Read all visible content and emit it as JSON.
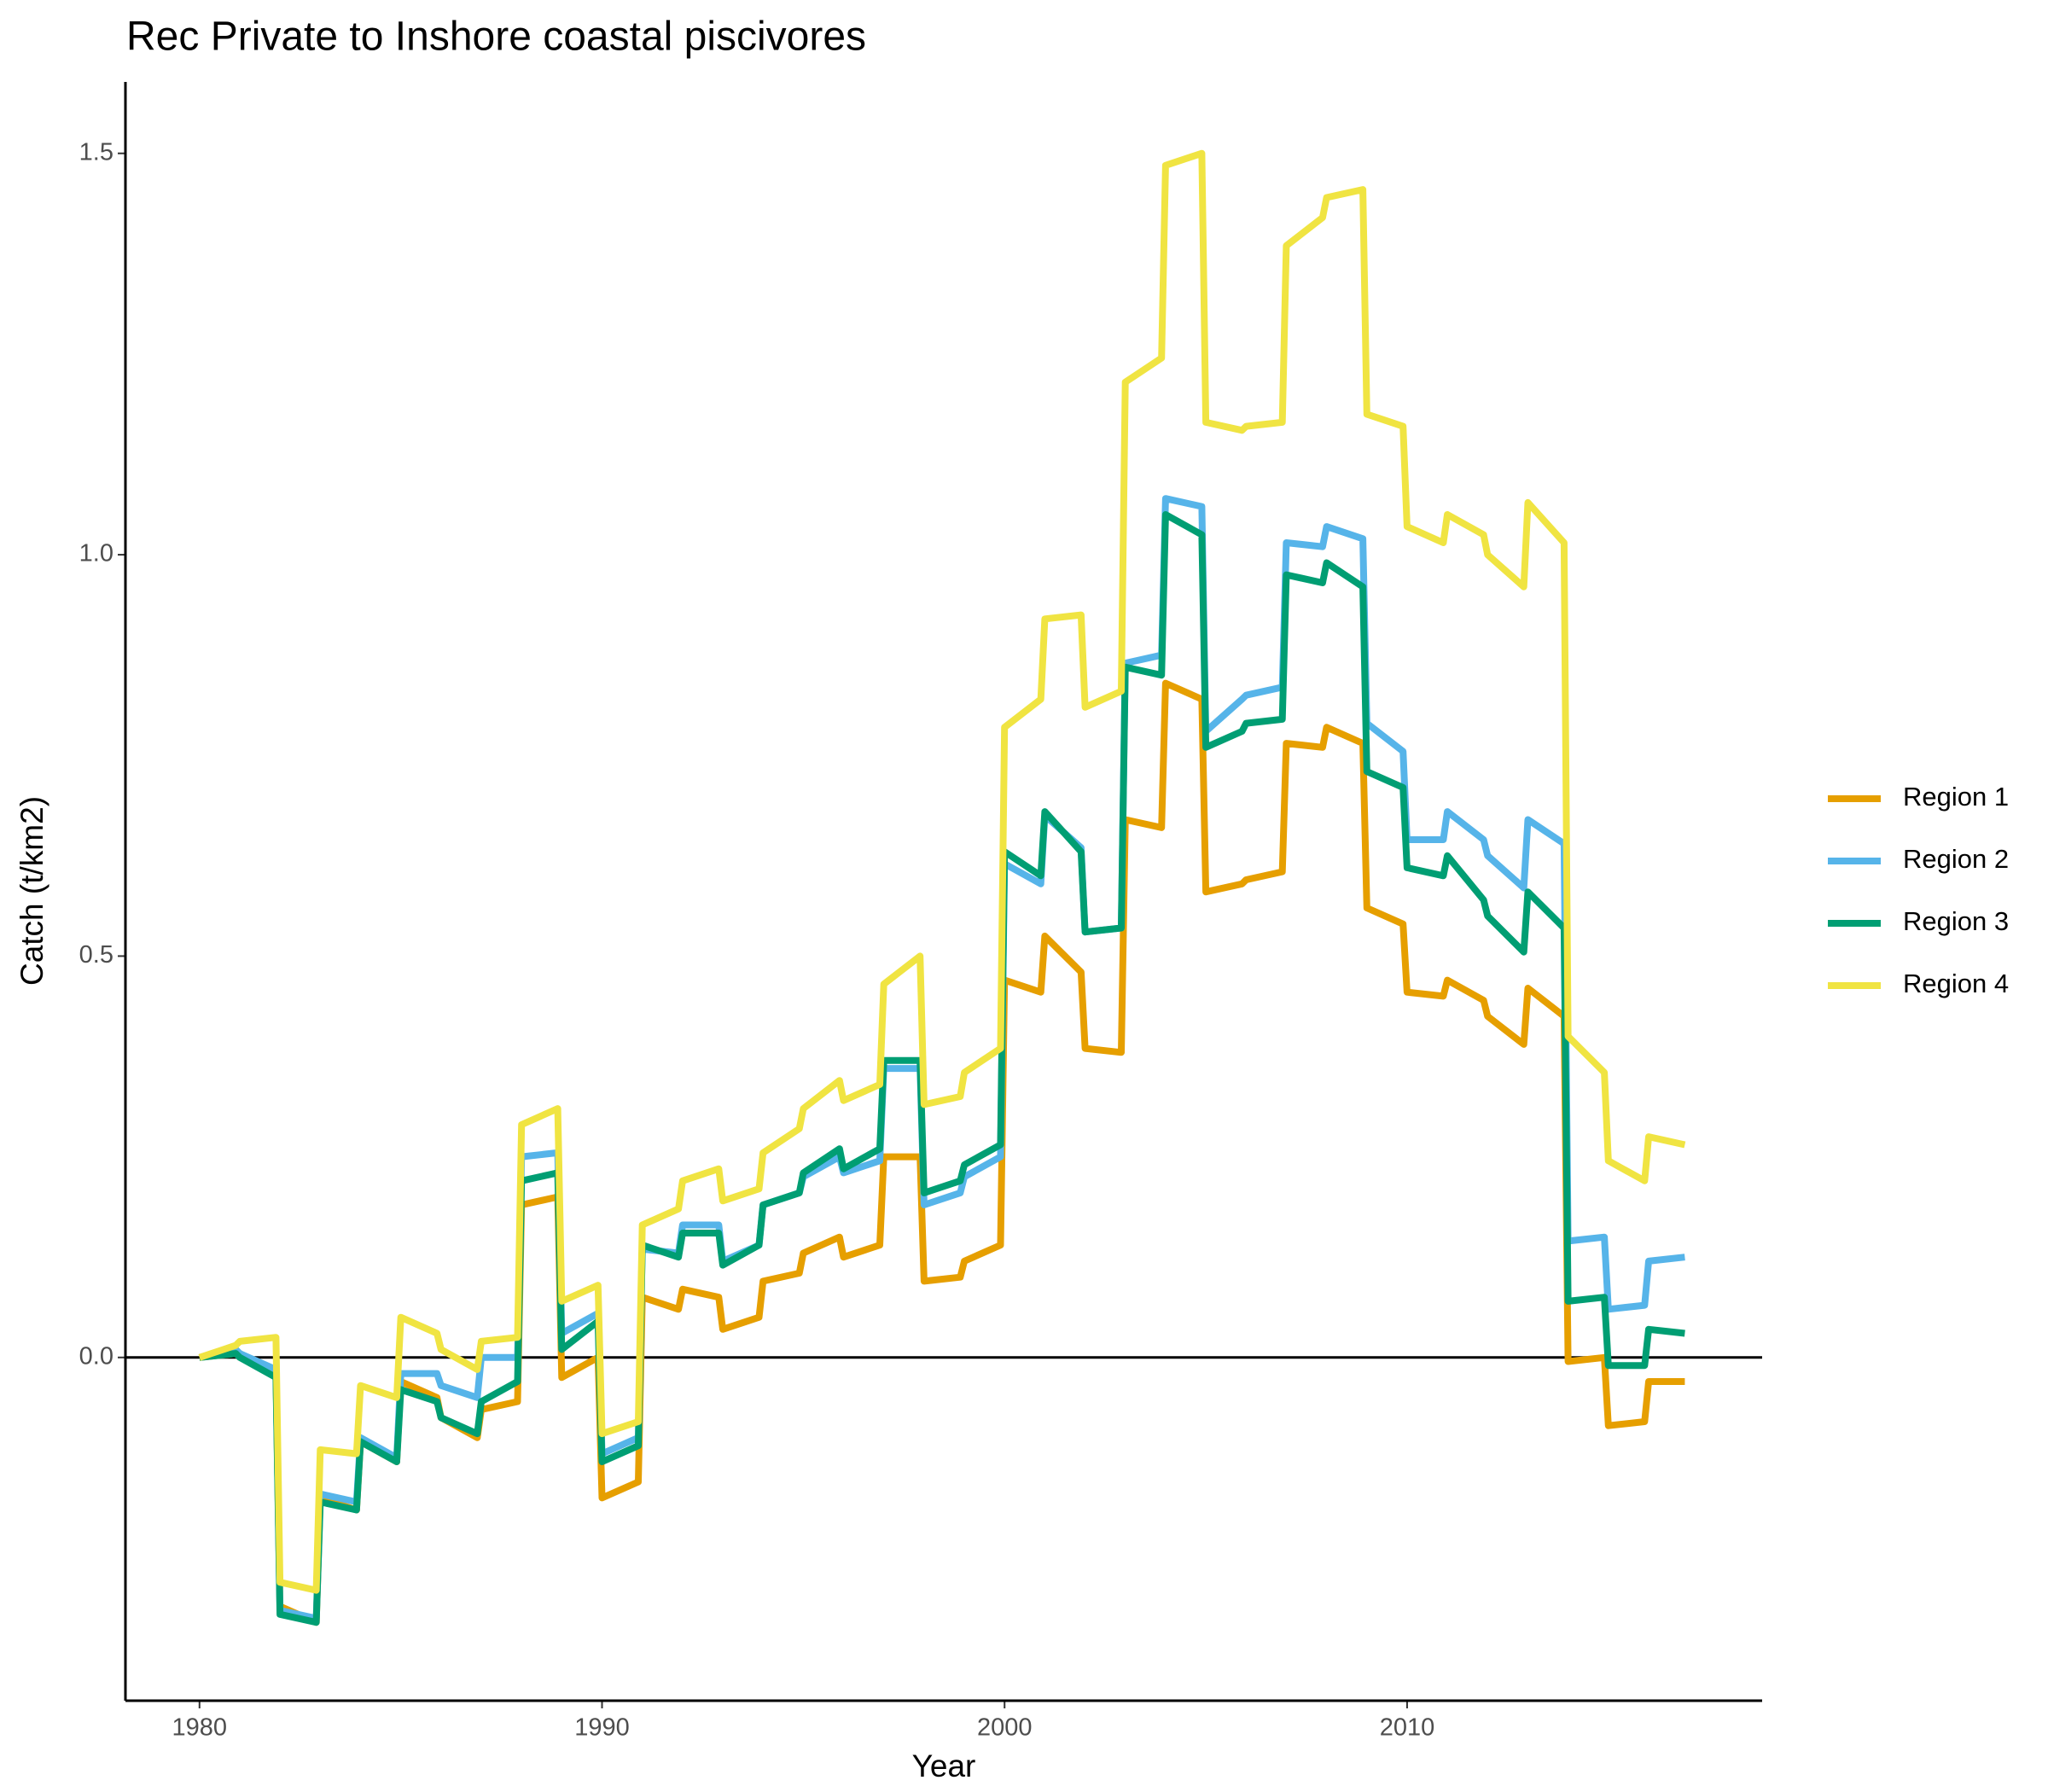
{
  "chart_data": {
    "type": "line",
    "title": "Rec Private to Inshore coastal piscivores",
    "x_label": "Year",
    "y_label": "Catch (t/km2)",
    "x": [
      1980,
      1980.9,
      1981,
      1981.9,
      1982,
      1982.9,
      1983,
      1983.9,
      1984,
      1984.9,
      1985,
      1985.9,
      1986,
      1986.9,
      1987,
      1987.9,
      1988,
      1988.9,
      1989,
      1989.9,
      1990,
      1990.9,
      1991,
      1991.9,
      1992,
      1992.9,
      1993,
      1993.9,
      1994,
      1994.9,
      1995,
      1995.9,
      1996,
      1996.9,
      1997,
      1997.9,
      1998,
      1998.9,
      1999,
      1999.9,
      2000,
      2000.9,
      2001,
      2001.9,
      2002,
      2002.9,
      2003,
      2003.9,
      2004,
      2004.9,
      2005,
      2005.9,
      2006,
      2006.9,
      2007,
      2007.9,
      2008,
      2008.9,
      2009,
      2009.9,
      2010,
      2010.9,
      2011,
      2011.9,
      2012,
      2012.9,
      2013,
      2013.9,
      2014,
      2014.9,
      2015,
      2015.9,
      2016,
      2016.9
    ],
    "series": [
      {
        "name": "Region 1",
        "color": "#e69f00",
        "values": [
          0,
          0.005,
          0.005,
          -0.02,
          -0.31,
          -0.33,
          -0.175,
          -0.19,
          -0.105,
          -0.13,
          -0.03,
          -0.05,
          -0.075,
          -0.1,
          -0.065,
          -0.055,
          0.19,
          0.2,
          -0.025,
          0.0,
          -0.175,
          -0.155,
          0.075,
          0.06,
          0.085,
          0.075,
          0.035,
          0.05,
          0.095,
          0.105,
          0.13,
          0.15,
          0.125,
          0.14,
          0.25,
          0.25,
          0.095,
          0.1,
          0.12,
          0.14,
          0.47,
          0.455,
          0.525,
          0.48,
          0.385,
          0.38,
          0.67,
          0.66,
          0.84,
          0.82,
          0.58,
          0.59,
          0.595,
          0.605,
          0.765,
          0.76,
          0.785,
          0.765,
          0.56,
          0.54,
          0.455,
          0.45,
          0.47,
          0.445,
          0.425,
          0.39,
          0.46,
          0.425,
          -0.005,
          0.0,
          -0.085,
          -0.08,
          -0.03,
          -0.03
        ]
      },
      {
        "name": "Region 2",
        "color": "#56b4e9",
        "values": [
          0,
          0.01,
          0.005,
          -0.015,
          -0.315,
          -0.325,
          -0.17,
          -0.18,
          -0.1,
          -0.125,
          -0.02,
          -0.02,
          -0.035,
          -0.05,
          0.0,
          0.0,
          0.25,
          0.255,
          0.03,
          0.055,
          -0.12,
          -0.1,
          0.135,
          0.13,
          0.165,
          0.165,
          0.12,
          0.14,
          0.19,
          0.205,
          0.225,
          0.25,
          0.23,
          0.245,
          0.36,
          0.36,
          0.19,
          0.205,
          0.225,
          0.25,
          0.615,
          0.59,
          0.675,
          0.635,
          0.53,
          0.535,
          0.865,
          0.875,
          1.07,
          1.06,
          0.78,
          0.82,
          0.825,
          0.835,
          1.015,
          1.01,
          1.035,
          1.02,
          0.79,
          0.755,
          0.645,
          0.645,
          0.68,
          0.645,
          0.625,
          0.585,
          0.67,
          0.64,
          0.145,
          0.15,
          0.06,
          0.065,
          0.12,
          0.125
        ]
      },
      {
        "name": "Region 3",
        "color": "#009e73",
        "values": [
          0,
          0.005,
          0.0,
          -0.025,
          -0.32,
          -0.33,
          -0.18,
          -0.19,
          -0.105,
          -0.13,
          -0.04,
          -0.055,
          -0.075,
          -0.095,
          -0.055,
          -0.03,
          0.22,
          0.23,
          0.01,
          0.045,
          -0.13,
          -0.11,
          0.14,
          0.125,
          0.155,
          0.155,
          0.115,
          0.14,
          0.19,
          0.205,
          0.23,
          0.26,
          0.235,
          0.26,
          0.37,
          0.37,
          0.205,
          0.22,
          0.24,
          0.265,
          0.63,
          0.6,
          0.68,
          0.63,
          0.53,
          0.535,
          0.86,
          0.85,
          1.05,
          1.025,
          0.76,
          0.78,
          0.79,
          0.795,
          0.975,
          0.965,
          0.99,
          0.96,
          0.73,
          0.71,
          0.61,
          0.6,
          0.625,
          0.57,
          0.55,
          0.505,
          0.58,
          0.535,
          0.07,
          0.075,
          -0.01,
          -0.01,
          0.035,
          0.03
        ]
      },
      {
        "name": "Region 4",
        "color": "#f0e442",
        "values": [
          0,
          0.015,
          0.02,
          0.025,
          -0.28,
          -0.29,
          -0.115,
          -0.12,
          -0.035,
          -0.05,
          0.05,
          0.03,
          0.01,
          -0.015,
          0.02,
          0.025,
          0.29,
          0.31,
          0.07,
          0.09,
          -0.095,
          -0.08,
          0.165,
          0.185,
          0.22,
          0.235,
          0.195,
          0.21,
          0.255,
          0.285,
          0.31,
          0.345,
          0.32,
          0.34,
          0.465,
          0.5,
          0.315,
          0.325,
          0.355,
          0.385,
          0.785,
          0.82,
          0.92,
          0.925,
          0.81,
          0.83,
          1.215,
          1.245,
          1.485,
          1.5,
          1.165,
          1.155,
          1.16,
          1.165,
          1.385,
          1.42,
          1.445,
          1.455,
          1.175,
          1.16,
          1.035,
          1.015,
          1.05,
          1.025,
          1.0,
          0.96,
          1.065,
          1.015,
          0.4,
          0.355,
          0.245,
          0.22,
          0.275,
          0.265
        ]
      }
    ],
    "xlim": [
      1978.16,
      2018.82
    ],
    "xticks": [
      1980,
      1990,
      2000,
      2010
    ],
    "ylim": [
      -0.4276,
      1.589
    ],
    "yticks": [
      {
        "value": 0,
        "label": "0.0"
      },
      0.5,
      {
        "value": 1,
        "label": "1.0"
      },
      1.5
    ],
    "hline": 0,
    "grid": false,
    "legend": "right"
  }
}
